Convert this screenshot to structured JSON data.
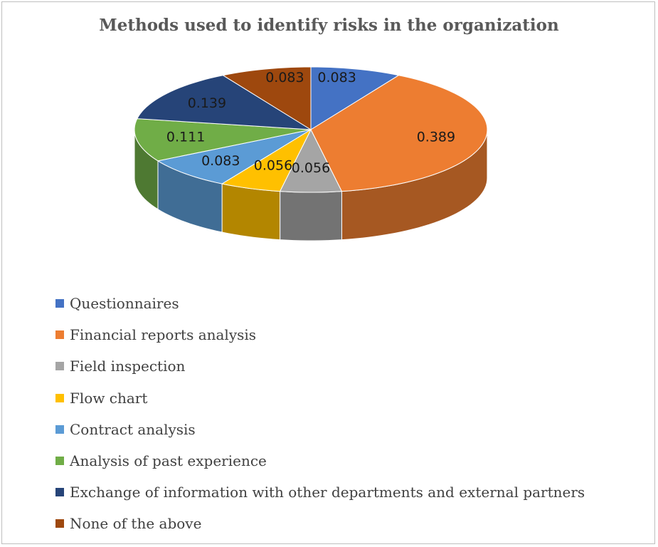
{
  "chart_data": {
    "type": "pie",
    "title": "Methods used to identify risks in the organization",
    "legend_position": "bottom-left",
    "slices": [
      {
        "name": "Questionnaires",
        "value": 0.083,
        "label": "0.083",
        "color": "#4472c4"
      },
      {
        "name": "Financial reports analysis",
        "value": 0.389,
        "label": "0.389",
        "color": "#ed7d31"
      },
      {
        "name": "Field inspection",
        "value": 0.056,
        "label": "0.056",
        "color": "#a5a5a5"
      },
      {
        "name": "Flow chart",
        "value": 0.056,
        "label": "0.056",
        "color": "#ffc000"
      },
      {
        "name": "Contract analysis",
        "value": 0.083,
        "label": "0.083",
        "color": "#5b9bd5"
      },
      {
        "name": "Analysis of past experience",
        "value": 0.111,
        "label": "0.111",
        "color": "#70ad47"
      },
      {
        "name": "Exchange of information with other departments and external partners",
        "value": 0.139,
        "label": "0.139",
        "color": "#264478"
      },
      {
        "name": "None of the above",
        "value": 0.083,
        "label": "0.083",
        "color": "#9e480e"
      }
    ]
  }
}
